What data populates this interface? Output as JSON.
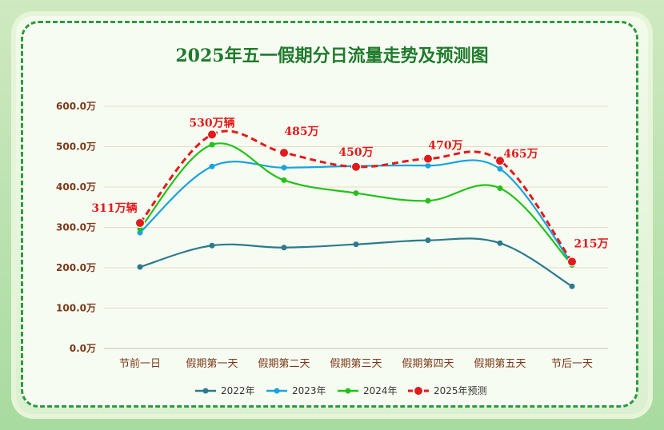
{
  "chart_data": {
    "type": "line",
    "title": "2025年五一假期分日流量走势及预测图",
    "categories": [
      "节前一日",
      "假期第一天",
      "假期第二天",
      "假期第三天",
      "假期第四天",
      "假期第五天",
      "节后一天"
    ],
    "ylim": [
      0,
      600
    ],
    "yticks": [
      "0.0万",
      "100.0万",
      "200.0万",
      "300.0万",
      "400.0万",
      "500.0万",
      "600.0万"
    ],
    "ytick_values": [
      0,
      100,
      200,
      300,
      400,
      500,
      600
    ],
    "grid": true,
    "legend_position": "bottom",
    "series": [
      {
        "name": "2022年",
        "color": "#2c7a8c",
        "values": [
          202,
          255,
          250,
          258,
          268,
          261,
          154
        ]
      },
      {
        "name": "2023年",
        "color": "#1aa3de",
        "values": [
          287,
          451,
          448,
          452,
          453,
          445,
          210
        ]
      },
      {
        "name": "2024年",
        "color": "#22c21a",
        "values": [
          297,
          505,
          417,
          385,
          366,
          397,
          207
        ]
      },
      {
        "name": "2025年预测",
        "color": "#e11b1b",
        "dashed": true,
        "values": [
          311,
          530,
          485,
          450,
          470,
          465,
          215
        ]
      }
    ],
    "data_labels": [
      "311万辆",
      "530万辆",
      "485万",
      "450万",
      "470万",
      "465万",
      "215万"
    ]
  }
}
